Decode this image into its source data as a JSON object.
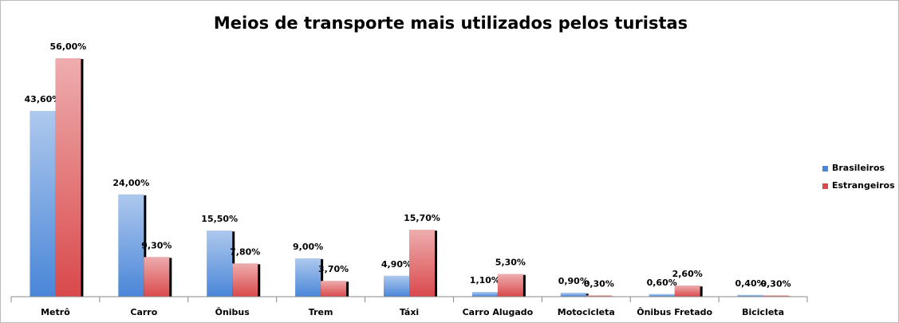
{
  "chart_data": {
    "type": "bar",
    "title": "Meios de transporte mais utilizados pelos turistas",
    "categories": [
      "Metrô",
      "Carro",
      "Ônibus",
      "Trem",
      "Táxi",
      "Carro Alugado",
      "Motocicleta",
      "Ônibus Fretado",
      "Bicicleta"
    ],
    "series": [
      {
        "name": "Brasileiros",
        "color": "#4a86d8",
        "values": [
          43.6,
          24.0,
          15.5,
          9.0,
          4.9,
          1.1,
          0.9,
          0.6,
          0.4
        ],
        "value_labels": [
          "43,60%",
          "24,00%",
          "15,50%",
          "9,00%",
          "4,90%",
          "1,10%",
          "0,90%",
          "0,60%",
          "0,40%"
        ]
      },
      {
        "name": "Estrangeiros",
        "color": "#d9494b",
        "values": [
          56.0,
          9.3,
          7.8,
          3.7,
          15.7,
          5.3,
          0.3,
          2.6,
          0.3
        ],
        "value_labels": [
          "56,00%",
          "9,30%",
          "7,80%",
          "3,70%",
          "15,70%",
          "5,30%",
          "0,30%",
          "2,60%",
          "0,30%"
        ]
      }
    ],
    "legend": "right"
  }
}
